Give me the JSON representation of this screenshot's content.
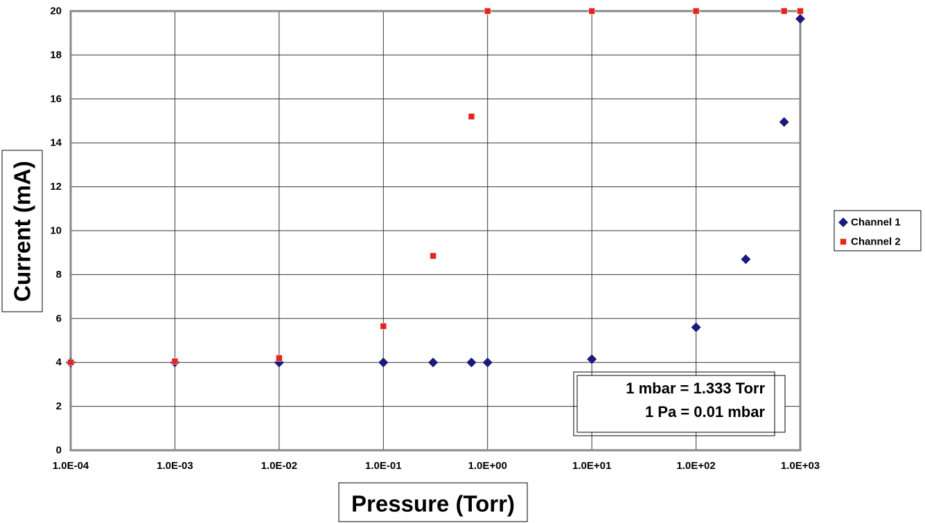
{
  "chart_data": {
    "type": "scatter",
    "x_scale": "log",
    "xlabel": "Pressure (Torr)",
    "ylabel": "Current (mA)",
    "xlim": [
      0.0001,
      1000
    ],
    "ylim": [
      0,
      20
    ],
    "x_ticks": [
      0.0001,
      0.001,
      0.01,
      0.1,
      1,
      10,
      100,
      1000
    ],
    "x_tick_labels": [
      "1.0E-04",
      "1.0E-03",
      "1.0E-02",
      "1.0E-01",
      "1.0E+00",
      "1.0E+01",
      "1.0E+02",
      "1.0E+03"
    ],
    "y_ticks": [
      0,
      2,
      4,
      6,
      8,
      10,
      12,
      14,
      16,
      18,
      20
    ],
    "y_tick_labels": [
      "0",
      "2",
      "4",
      "6",
      "8",
      "10",
      "12",
      "14",
      "16",
      "18",
      "20"
    ],
    "grid": true,
    "legend_position": "right",
    "series": [
      {
        "name": "Channel 1",
        "marker": "diamond",
        "color": "#1a1a7a",
        "x": [
          0.0001,
          0.001,
          0.01,
          0.1,
          0.3,
          0.7,
          1,
          10,
          100,
          300,
          700,
          1000
        ],
        "y": [
          4.0,
          4.0,
          4.0,
          4.0,
          4.0,
          4.0,
          4.0,
          4.15,
          5.6,
          8.7,
          14.95,
          19.65
        ]
      },
      {
        "name": "Channel 2",
        "marker": "square",
        "color": "#e8231d",
        "x": [
          0.0001,
          0.001,
          0.01,
          0.1,
          0.3,
          0.7,
          1,
          10,
          100,
          700,
          1000
        ],
        "y": [
          4.0,
          4.05,
          4.2,
          5.65,
          8.85,
          15.2,
          20,
          20,
          20,
          20,
          20
        ]
      }
    ],
    "annotation": [
      "1 mbar = 1.333 Torr",
      "1 Pa = 0.01 mbar"
    ]
  }
}
